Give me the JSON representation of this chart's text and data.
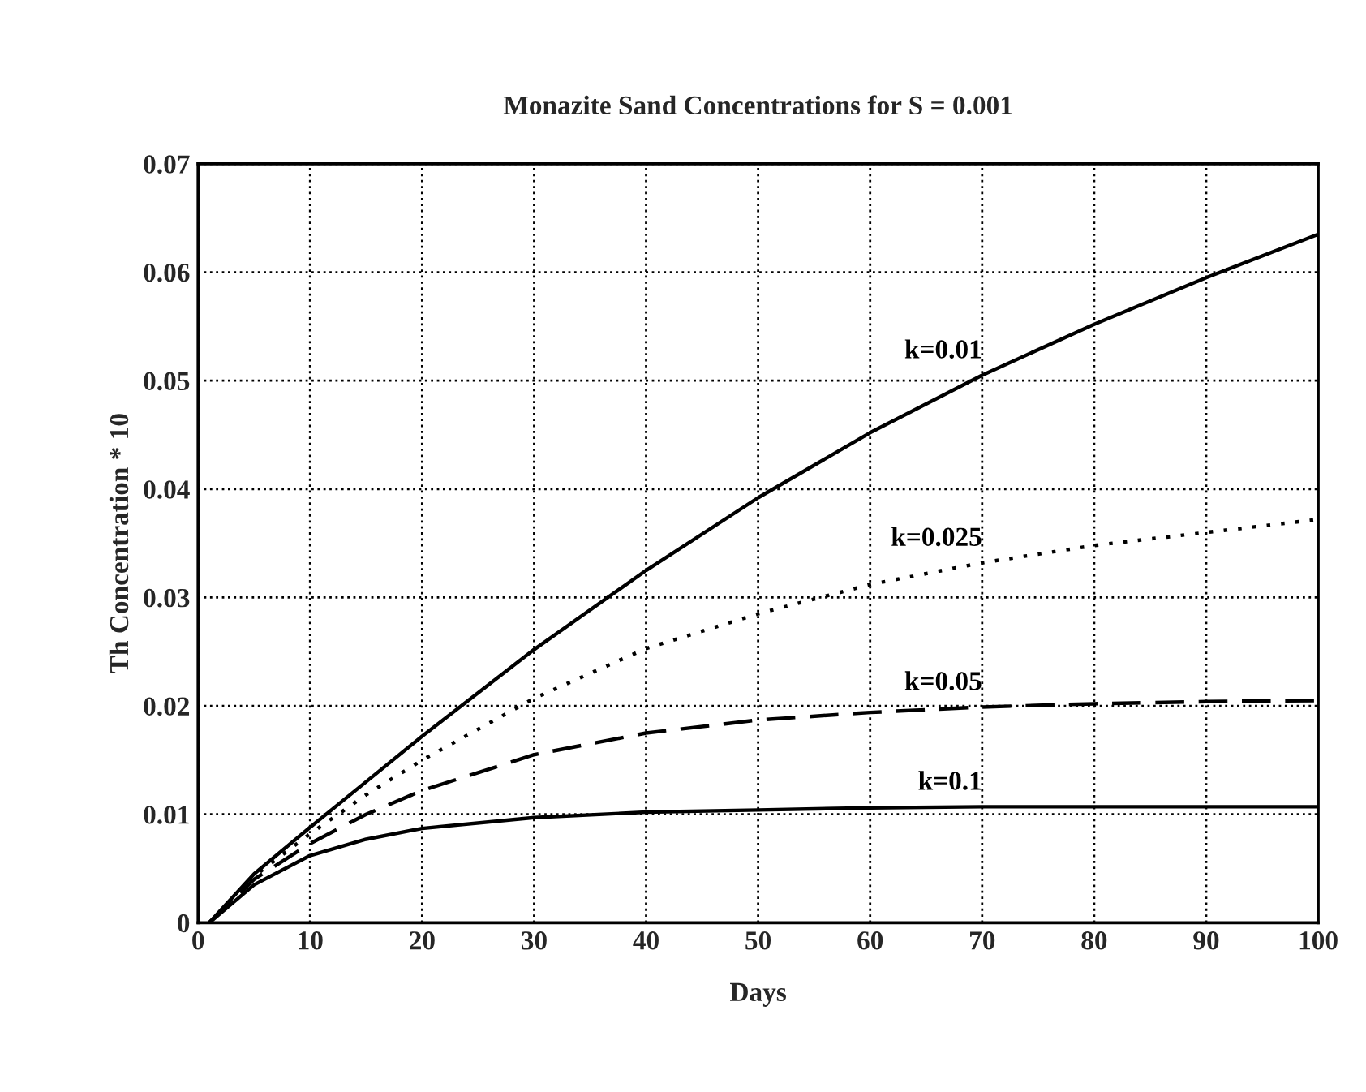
{
  "chart_data": {
    "type": "line",
    "title": "Monazite Sand Concentrations for S = 0.001",
    "xlabel": "Days",
    "ylabel": "Th Concentration * 10",
    "xlim": [
      0,
      100
    ],
    "xticks": [
      0,
      10,
      20,
      30,
      40,
      50,
      60,
      70,
      80,
      90,
      100
    ],
    "ylim": [
      0,
      0.07
    ],
    "yticks": [
      0,
      0.01,
      0.02,
      0.03,
      0.04,
      0.05,
      0.06,
      0.07
    ],
    "grid": true,
    "series": [
      {
        "name": "k=0.01",
        "color": "#000000",
        "line_style": "solid",
        "x": [
          1,
          5,
          10,
          15,
          20,
          30,
          40,
          50,
          60,
          70,
          80,
          90,
          100
        ],
        "values": [
          0,
          0.0045,
          0.0088,
          0.013,
          0.0172,
          0.0252,
          0.0325,
          0.0392,
          0.0452,
          0.0505,
          0.0552,
          0.0595,
          0.0635
        ]
      },
      {
        "name": "k=0.025",
        "color": "#000000",
        "line_style": "dotted",
        "x": [
          1,
          5,
          10,
          15,
          20,
          30,
          40,
          50,
          60,
          70,
          80,
          90,
          100
        ],
        "values": [
          0,
          0.0043,
          0.0082,
          0.0118,
          0.015,
          0.0207,
          0.0253,
          0.0285,
          0.0312,
          0.0332,
          0.0348,
          0.036,
          0.0372
        ]
      },
      {
        "name": "k=0.05",
        "color": "#000000",
        "line_style": "dashed",
        "x": [
          1,
          5,
          10,
          15,
          20,
          30,
          40,
          50,
          60,
          70,
          80,
          90,
          100
        ],
        "values": [
          0,
          0.004,
          0.0073,
          0.01,
          0.0122,
          0.0155,
          0.0175,
          0.0187,
          0.0194,
          0.0199,
          0.0202,
          0.0204,
          0.0205
        ]
      },
      {
        "name": "k=0.1",
        "color": "#000000",
        "line_style": "solid",
        "x": [
          1,
          5,
          10,
          15,
          20,
          30,
          40,
          50,
          60,
          70,
          80,
          90,
          100
        ],
        "values": [
          0,
          0.0035,
          0.0062,
          0.0077,
          0.0087,
          0.0097,
          0.0102,
          0.0104,
          0.0106,
          0.0107,
          0.0107,
          0.0107,
          0.0107
        ]
      }
    ]
  }
}
